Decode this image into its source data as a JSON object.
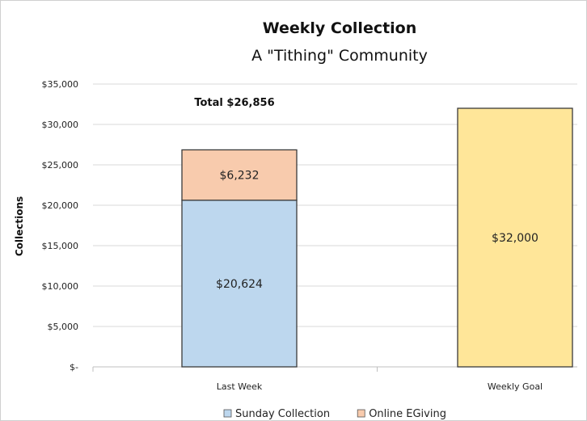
{
  "chart_data": {
    "type": "bar",
    "stacked": true,
    "title": "Weekly Collection",
    "subtitle": "A \"Tithing\" Community",
    "xlabel": "",
    "ylabel": "Collections",
    "ylim": [
      0,
      35000
    ],
    "yticks": [
      0,
      5000,
      10000,
      15000,
      20000,
      25000,
      30000,
      35000
    ],
    "ytick_labels": [
      "$-",
      "$5,000",
      "$10,000",
      "$15,000",
      "$20,000",
      "$25,000",
      "$30,000",
      "$35,000"
    ],
    "categories": [
      "Last Week",
      "Weekly Goal"
    ],
    "grid": true,
    "legend_position": "bottom",
    "series": [
      {
        "name": "Sunday Collection",
        "color": "#BDD7EE",
        "values": [
          20624,
          null
        ],
        "labels": [
          "$20,624",
          ""
        ]
      },
      {
        "name": "Online EGiving",
        "color": "#F8CBAD",
        "values": [
          6232,
          null
        ],
        "labels": [
          "$6,232",
          ""
        ]
      },
      {
        "name": "",
        "color": "#FFE699",
        "values": [
          null,
          32000
        ],
        "labels": [
          "",
          "$32,000"
        ]
      }
    ],
    "annotation": "Total $26,856"
  }
}
